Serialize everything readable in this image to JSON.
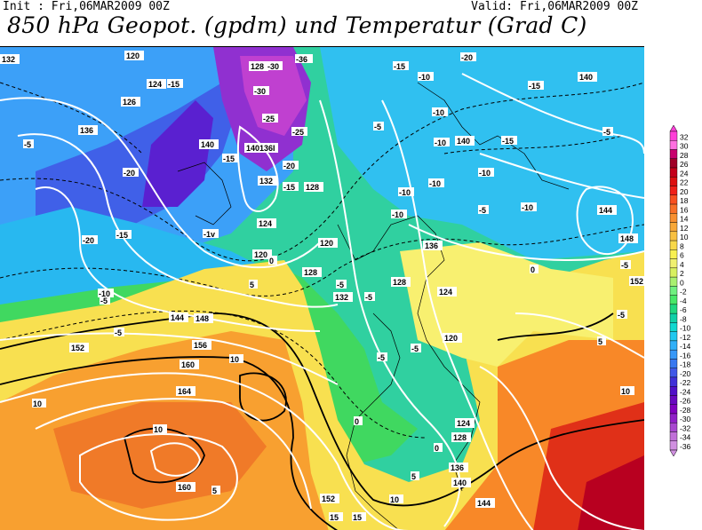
{
  "header": {
    "init": "Init : Fri,06MAR2009 00Z",
    "valid": "Valid: Fri,06MAR2009 00Z",
    "title": "850 hPa Geopot. (gpdm) und Temperatur (Grad C)"
  },
  "map": {
    "geopotential_labels": [
      "132",
      "120",
      "128",
      "124",
      "126",
      "136",
      "140",
      "140136I",
      "132",
      "128",
      "124",
      "120",
      "128",
      "132",
      "120",
      "124",
      "128",
      "136",
      "140",
      "144",
      "148",
      "152",
      "156",
      "160",
      "164",
      "160",
      "152",
      "144",
      "140",
      "136",
      "128",
      "124",
      "120",
      "144",
      "148",
      "152",
      "140"
    ],
    "temperature_labels": [
      "-36",
      "-30",
      "-30",
      "-25",
      "-25",
      "-20",
      "-15",
      "-15",
      "-15",
      "-10",
      "-20",
      "-15",
      "-10",
      "-5",
      "-5",
      "-15",
      "-10",
      "-10",
      "-10",
      "-10",
      "-5",
      "-5",
      "-5",
      "-10",
      "-5",
      "-5",
      "-5",
      "0",
      "0",
      "5",
      "5",
      "10",
      "10",
      "10",
      "10",
      "5",
      "0",
      "-5",
      "15",
      "15",
      "5",
      "10",
      "-15",
      "-20",
      "-10",
      "-5",
      "-5",
      "-10",
      "-15",
      "-20",
      "-1v",
      "0",
      "-5"
    ]
  },
  "legend": {
    "values": [
      "32",
      "30",
      "28",
      "26",
      "24",
      "22",
      "20",
      "18",
      "16",
      "14",
      "12",
      "10",
      "8",
      "6",
      "4",
      "2",
      "0",
      "-2",
      "-4",
      "-6",
      "-8",
      "-10",
      "-12",
      "-14",
      "-16",
      "-18",
      "-20",
      "-22",
      "-24",
      "-26",
      "-28",
      "-30",
      "-32",
      "-34",
      "-36"
    ],
    "colors": [
      "#ff3fd8",
      "#ff6fe0",
      "#c8006e",
      "#a00028",
      "#c4001a",
      "#dd1010",
      "#f02018",
      "#f85020",
      "#f87028",
      "#f89030",
      "#f8a838",
      "#f8c040",
      "#f8d848",
      "#f8f050",
      "#f0f070",
      "#d8f060",
      "#a8f070",
      "#70f080",
      "#48e868",
      "#20d880",
      "#10d0a8",
      "#10d8d0",
      "#20c8f0",
      "#30b0f8",
      "#3898f8",
      "#3878f0",
      "#4058e8",
      "#4030d8",
      "#5010c8",
      "#6808c0",
      "#8000c0",
      "#9020c8",
      "#a848d0",
      "#c070d8",
      "#d090e0"
    ]
  }
}
